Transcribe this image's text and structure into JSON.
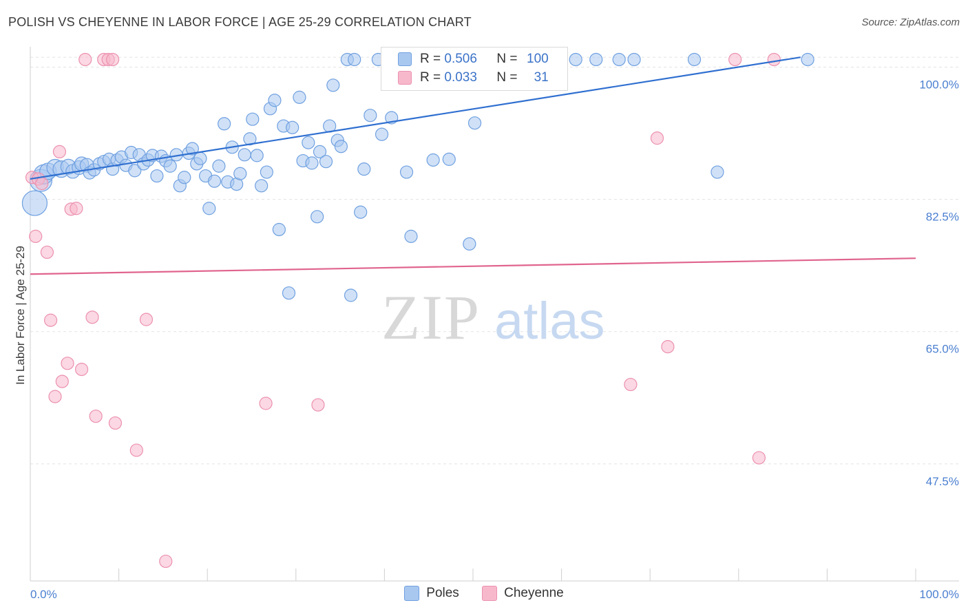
{
  "title": "POLISH VS CHEYENNE IN LABOR FORCE | AGE 25-29 CORRELATION CHART",
  "source": "Source: ZipAtlas.com",
  "watermark": {
    "zip": "ZIP",
    "atlas": "atlas"
  },
  "legend": {
    "rows": [
      {
        "r_label": "R = ",
        "r_value": "0.506",
        "n_label": "N = ",
        "n_value": "100",
        "color": "#a9c8f0"
      },
      {
        "r_label": "R = ",
        "r_value": "0.033",
        "n_label": "N = ",
        "n_value": "31",
        "color": "#f7b8cc"
      }
    ]
  },
  "bottom_legend": [
    {
      "label": "Poles",
      "color": "#a9c8f0"
    },
    {
      "label": "Cheyenne",
      "color": "#f7b8cc"
    }
  ],
  "chart_data": {
    "type": "scatter",
    "title": "POLISH VS CHEYENNE IN LABOR FORCE | AGE 25-29 CORRELATION CHART",
    "xlabel": "",
    "ylabel": "In Labor Force | Age 25-29",
    "xlim": [
      0,
      100
    ],
    "ylim": [
      32,
      102.5
    ],
    "x_tick_labels": [
      "0.0%",
      "100.0%"
    ],
    "y_ticks": [
      47.5,
      65.0,
      82.5,
      100.0
    ],
    "y_tick_labels": [
      "47.5%",
      "65.0%",
      "82.5%",
      "100.0%"
    ],
    "grid": true,
    "series": [
      {
        "name": "Poles",
        "color": "#6fa0e0",
        "fill": "#a9c8f0",
        "trend": {
          "x": [
            0,
            87
          ],
          "y": [
            85.2,
            101.3
          ]
        },
        "points": [
          [
            0.5,
            82.0,
            18
          ],
          [
            1.2,
            85.0,
            16
          ],
          [
            1.5,
            85.8,
            14
          ],
          [
            2.0,
            86.2,
            12
          ],
          [
            2.8,
            86.7,
            12
          ],
          [
            3.5,
            86.5,
            12
          ],
          [
            4.3,
            86.8,
            11
          ],
          [
            4.8,
            86.2,
            10
          ],
          [
            5.5,
            86.7,
            10
          ],
          [
            5.8,
            87.2,
            10
          ],
          [
            6.4,
            87.0,
            10
          ],
          [
            6.7,
            86.0,
            9
          ],
          [
            7.2,
            86.4,
            9
          ],
          [
            7.8,
            87.2,
            9
          ],
          [
            8.3,
            87.5,
            9
          ],
          [
            8.9,
            87.8,
            9
          ],
          [
            9.3,
            86.5,
            9
          ],
          [
            9.8,
            87.7,
            9
          ],
          [
            10.3,
            88.1,
            9
          ],
          [
            10.8,
            87.0,
            9
          ],
          [
            11.4,
            88.7,
            9
          ],
          [
            11.8,
            86.3,
            9
          ],
          [
            12.3,
            88.4,
            9
          ],
          [
            12.8,
            87.2,
            9
          ],
          [
            13.3,
            87.7,
            9
          ],
          [
            13.8,
            88.3,
            9
          ],
          [
            14.3,
            85.6,
            9
          ],
          [
            14.8,
            88.2,
            9
          ],
          [
            15.3,
            87.6,
            9
          ],
          [
            15.8,
            86.9,
            9
          ],
          [
            16.5,
            88.4,
            9
          ],
          [
            16.9,
            84.3,
            9
          ],
          [
            17.4,
            85.4,
            9
          ],
          [
            17.9,
            88.6,
            9
          ],
          [
            18.3,
            89.2,
            9
          ],
          [
            18.8,
            87.2,
            9
          ],
          [
            19.2,
            87.9,
            9
          ],
          [
            19.8,
            85.6,
            9
          ],
          [
            20.2,
            81.3,
            9
          ],
          [
            20.8,
            84.9,
            9
          ],
          [
            21.3,
            86.9,
            9
          ],
          [
            21.9,
            92.5,
            9
          ],
          [
            22.3,
            84.8,
            9
          ],
          [
            22.8,
            89.4,
            9
          ],
          [
            23.3,
            84.5,
            9
          ],
          [
            23.7,
            85.9,
            9
          ],
          [
            24.2,
            88.4,
            9
          ],
          [
            24.8,
            90.5,
            9
          ],
          [
            25.1,
            93.1,
            9
          ],
          [
            25.6,
            88.3,
            9
          ],
          [
            26.1,
            84.3,
            9
          ],
          [
            26.7,
            86.1,
            9
          ],
          [
            27.1,
            94.5,
            9
          ],
          [
            27.6,
            95.6,
            9
          ],
          [
            28.1,
            78.5,
            9
          ],
          [
            28.6,
            92.2,
            9
          ],
          [
            29.2,
            70.1,
            9
          ],
          [
            29.6,
            92.0,
            9
          ],
          [
            30.4,
            96.0,
            9
          ],
          [
            30.8,
            87.6,
            9
          ],
          [
            31.4,
            90.0,
            9
          ],
          [
            31.8,
            87.3,
            9
          ],
          [
            32.4,
            80.2,
            9
          ],
          [
            32.7,
            88.8,
            9
          ],
          [
            33.4,
            87.5,
            9
          ],
          [
            33.8,
            92.2,
            9
          ],
          [
            34.2,
            97.6,
            9
          ],
          [
            34.7,
            90.3,
            9
          ],
          [
            35.1,
            89.5,
            9
          ],
          [
            35.8,
            101.0,
            9
          ],
          [
            36.2,
            69.8,
            9
          ],
          [
            36.6,
            101.0,
            9
          ],
          [
            37.3,
            80.8,
            9
          ],
          [
            37.7,
            86.5,
            9
          ],
          [
            38.4,
            93.6,
            9
          ],
          [
            39.3,
            101.0,
            9
          ],
          [
            39.7,
            91.1,
            9
          ],
          [
            40.8,
            93.3,
            9
          ],
          [
            42.2,
            101.0,
            9
          ],
          [
            42.5,
            86.1,
            9
          ],
          [
            43.0,
            77.6,
            9
          ],
          [
            44.5,
            101.0,
            9
          ],
          [
            45.5,
            87.7,
            9
          ],
          [
            46.8,
            101.0,
            9
          ],
          [
            47.3,
            87.8,
            9
          ],
          [
            49.0,
            101.0,
            9
          ],
          [
            49.6,
            76.6,
            9
          ],
          [
            50.2,
            92.6,
            9
          ],
          [
            51.5,
            101.0,
            9
          ],
          [
            53.4,
            101.0,
            9
          ],
          [
            55.7,
            101.0,
            9
          ],
          [
            57.3,
            101.0,
            9
          ],
          [
            59.0,
            101.0,
            9
          ],
          [
            61.6,
            101.0,
            9
          ],
          [
            63.9,
            101.0,
            9
          ],
          [
            66.5,
            101.0,
            9
          ],
          [
            68.2,
            101.0,
            9
          ],
          [
            75.0,
            101.0,
            9
          ],
          [
            77.6,
            86.1,
            9
          ],
          [
            87.8,
            101.0,
            9
          ]
        ]
      },
      {
        "name": "Cheyenne",
        "color": "#ec90ae",
        "fill": "#f7b8cc",
        "trend": {
          "x": [
            0,
            100
          ],
          "y": [
            72.6,
            74.7
          ]
        },
        "points": [
          [
            0.2,
            85.4,
            9
          ],
          [
            0.6,
            77.6,
            9
          ],
          [
            0.9,
            85.2,
            9
          ],
          [
            1.3,
            84.6,
            9
          ],
          [
            1.9,
            75.5,
            9
          ],
          [
            2.3,
            66.5,
            9
          ],
          [
            2.8,
            56.4,
            9
          ],
          [
            3.3,
            88.8,
            9
          ],
          [
            3.6,
            58.4,
            9
          ],
          [
            4.2,
            60.8,
            9
          ],
          [
            4.6,
            81.2,
            9
          ],
          [
            5.2,
            81.3,
            9
          ],
          [
            5.8,
            60.0,
            9
          ],
          [
            6.2,
            101.0,
            9
          ],
          [
            7.0,
            66.9,
            9
          ],
          [
            7.4,
            53.8,
            9
          ],
          [
            8.3,
            101.0,
            9
          ],
          [
            8.8,
            101.0,
            9
          ],
          [
            9.3,
            101.0,
            9
          ],
          [
            9.6,
            52.9,
            9
          ],
          [
            12.0,
            49.3,
            9
          ],
          [
            13.1,
            66.6,
            9
          ],
          [
            15.3,
            34.6,
            9
          ],
          [
            26.6,
            55.5,
            9
          ],
          [
            32.5,
            55.3,
            9
          ],
          [
            67.8,
            58.0,
            9
          ],
          [
            70.8,
            90.6,
            9
          ],
          [
            72.0,
            63.0,
            9
          ],
          [
            79.6,
            101.0,
            9
          ],
          [
            82.3,
            48.3,
            9
          ],
          [
            84.0,
            101.0,
            9
          ]
        ]
      }
    ]
  }
}
